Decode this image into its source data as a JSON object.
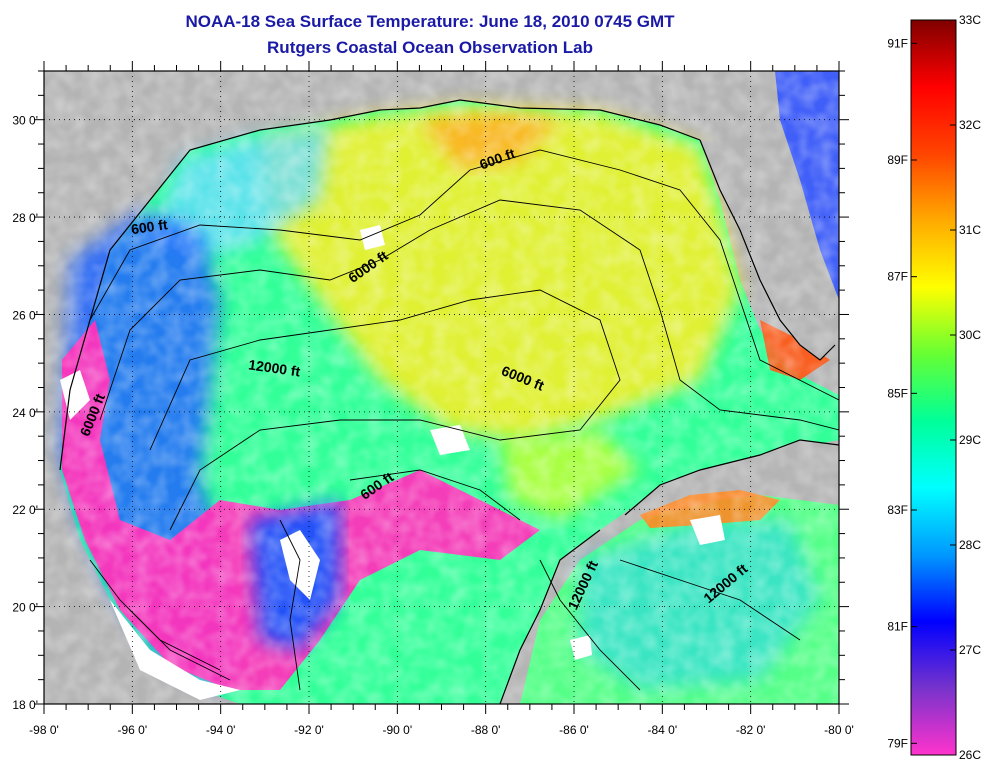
{
  "title": "NOAA-18 Sea Surface Temperature:  June 18, 2010 0745 GMT",
  "subtitle": "Rutgers Coastal Ocean Observation Lab",
  "map": {
    "lon_range": [
      -98,
      -80
    ],
    "lat_range": [
      18,
      31
    ],
    "lon_ticks": [
      "-98 0'",
      "-96 0'",
      "-94 0'",
      "-92 0'",
      "-90 0'",
      "-88 0'",
      "-86 0'",
      "-84 0'",
      "-82 0'",
      "-80 0'"
    ],
    "lat_ticks": [
      "18 0'",
      "20 0'",
      "22 0'",
      "24 0'",
      "26 0'",
      "28 0'",
      "30 0'"
    ],
    "gridlines": "dotted",
    "land_color": "#b4b4b4",
    "contour_labels": [
      {
        "text": "600 ft",
        "lon": -87.7,
        "lat": 29.1,
        "angle": -20
      },
      {
        "text": "600 ft",
        "lon": -95.6,
        "lat": 27.7,
        "angle": -8
      },
      {
        "text": "6000 ft",
        "lon": -90.6,
        "lat": 26.9,
        "angle": -35
      },
      {
        "text": "12000 ft",
        "lon": -92.8,
        "lat": 24.8,
        "angle": 8
      },
      {
        "text": "6000 ft",
        "lon": -87.2,
        "lat": 24.6,
        "angle": 22
      },
      {
        "text": "6000 ft",
        "lon": -96.8,
        "lat": 23.9,
        "angle": -68
      },
      {
        "text": "600 ft",
        "lon": -90.4,
        "lat": 22.4,
        "angle": -35
      },
      {
        "text": "12000 ft",
        "lon": -85.7,
        "lat": 20.4,
        "angle": -65
      },
      {
        "text": "12000 ft",
        "lon": -82.5,
        "lat": 20.4,
        "angle": -40
      }
    ]
  },
  "colorbar": {
    "celsius_labels": [
      "33C",
      "32C",
      "31C",
      "30C",
      "29C",
      "28C",
      "27C",
      "26C"
    ],
    "celsius_values": [
      33,
      32,
      31,
      30,
      29,
      28,
      27,
      26
    ],
    "fahrenheit_labels": [
      "91F",
      "89F",
      "87F",
      "85F",
      "83F",
      "81F",
      "79F"
    ],
    "fahrenheit_values": [
      91,
      89,
      87,
      85,
      83,
      81,
      79
    ],
    "range_c": [
      26,
      33
    ],
    "stops": [
      "#ff33cc",
      "#7733cc",
      "#0000ff",
      "#0099ff",
      "#00ffff",
      "#00ff99",
      "#66ff33",
      "#ffff00",
      "#ffaa00",
      "#ff4400",
      "#ff0000",
      "#800000"
    ]
  }
}
